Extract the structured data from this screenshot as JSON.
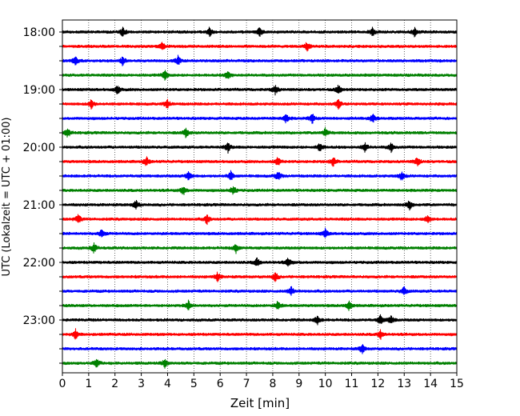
{
  "chart_data": {
    "type": "line",
    "title": "",
    "xlabel": "Zeit  [min]",
    "ylabel": "UTC (Lokalzeit = UTC + 01:00)",
    "xlim": [
      0,
      15
    ],
    "x_ticks": [
      "0",
      "1",
      "2",
      "3",
      "4",
      "5",
      "6",
      "7",
      "8",
      "9",
      "10",
      "11",
      "12",
      "13",
      "14",
      "15"
    ],
    "vertical_grid": "dotted",
    "hour_labels": [
      "18:00",
      "19:00",
      "20:00",
      "21:00",
      "22:00",
      "23:00"
    ],
    "rows_per_hour": 4,
    "row_start_times": [
      "18:00",
      "18:15",
      "18:30",
      "18:45",
      "19:00",
      "19:15",
      "19:30",
      "19:45",
      "20:00",
      "20:15",
      "20:30",
      "20:45",
      "21:00",
      "21:15",
      "21:30",
      "21:45",
      "22:00",
      "22:15",
      "22:30",
      "22:45",
      "23:00",
      "23:15",
      "23:30",
      "23:45"
    ],
    "trace_colors": [
      "#000000",
      "#ff0000",
      "#0000ff",
      "#008000"
    ],
    "events": [
      {
        "row": 0,
        "minutes": [
          2.3,
          5.6,
          7.5,
          11.8,
          13.4
        ]
      },
      {
        "row": 1,
        "minutes": [
          3.8,
          9.3
        ]
      },
      {
        "row": 2,
        "minutes": [
          0.5,
          2.3,
          4.4
        ]
      },
      {
        "row": 3,
        "minutes": [
          3.9,
          6.3
        ]
      },
      {
        "row": 4,
        "minutes": [
          2.1,
          8.1,
          10.5
        ]
      },
      {
        "row": 5,
        "minutes": [
          1.1,
          4.0,
          10.5
        ]
      },
      {
        "row": 6,
        "minutes": [
          8.5,
          9.5,
          11.8
        ]
      },
      {
        "row": 7,
        "minutes": [
          0.2,
          4.7,
          10.0
        ]
      },
      {
        "row": 8,
        "minutes": [
          6.3,
          9.8,
          11.5,
          12.5
        ]
      },
      {
        "row": 9,
        "minutes": [
          3.2,
          8.2,
          10.3,
          13.5
        ]
      },
      {
        "row": 10,
        "minutes": [
          4.8,
          6.4,
          8.2,
          12.9
        ]
      },
      {
        "row": 11,
        "minutes": [
          4.6,
          6.5
        ]
      },
      {
        "row": 12,
        "minutes": [
          2.8,
          13.2
        ]
      },
      {
        "row": 13,
        "minutes": [
          0.6,
          5.5,
          13.9
        ]
      },
      {
        "row": 14,
        "minutes": [
          1.5,
          10.0
        ]
      },
      {
        "row": 15,
        "minutes": [
          1.2,
          6.6
        ]
      },
      {
        "row": 16,
        "minutes": [
          7.4,
          8.6
        ]
      },
      {
        "row": 17,
        "minutes": [
          5.9,
          8.1
        ]
      },
      {
        "row": 18,
        "minutes": [
          8.7,
          13.0
        ]
      },
      {
        "row": 19,
        "minutes": [
          4.8,
          8.2,
          10.9
        ]
      },
      {
        "row": 20,
        "minutes": [
          9.7,
          12.1,
          12.5
        ]
      },
      {
        "row": 21,
        "minutes": [
          0.5,
          12.1
        ]
      },
      {
        "row": 22,
        "minutes": [
          11.4
        ]
      },
      {
        "row": 23,
        "minutes": [
          1.3,
          3.9
        ]
      }
    ]
  }
}
